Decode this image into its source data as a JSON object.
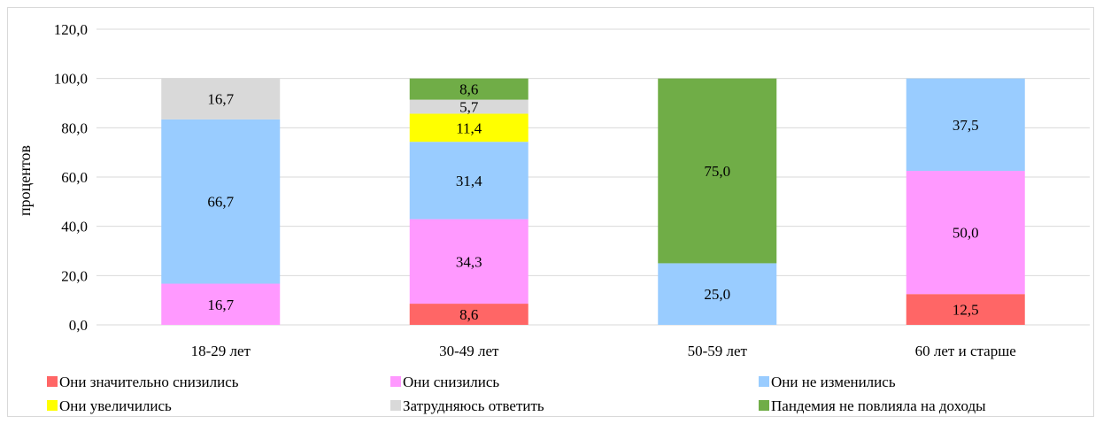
{
  "chart_data": {
    "type": "bar",
    "stacked": true,
    "title": "",
    "xlabel": "",
    "ylabel": "процентов",
    "ylim": [
      0,
      120
    ],
    "yticks": [
      "0,0",
      "20,0",
      "40,0",
      "60,0",
      "80,0",
      "100,0",
      "120,0"
    ],
    "grid": true,
    "legend_position": "bottom",
    "categories": [
      "18-29 лет",
      "30-49 лет",
      "50-59 лет",
      "60 лет и старше"
    ],
    "series": [
      {
        "name": "Они значительно снизились",
        "color": "#ff6666",
        "values": [
          0,
          8.6,
          0,
          12.5
        ],
        "labels": [
          "",
          "8,6",
          "",
          "12,5"
        ]
      },
      {
        "name": "Они снизились",
        "color": "#ff99ff",
        "values": [
          16.7,
          34.3,
          0,
          50.0
        ],
        "labels": [
          "16,7",
          "34,3",
          "",
          "50,0"
        ]
      },
      {
        "name": "Они не изменились",
        "color": "#99ccff",
        "values": [
          66.7,
          31.4,
          25.0,
          37.5
        ],
        "labels": [
          "66,7",
          "31,4",
          "25,0",
          "37,5"
        ]
      },
      {
        "name": "Они увеличились",
        "color": "#ffff00",
        "values": [
          0,
          11.4,
          0,
          0
        ],
        "labels": [
          "",
          "11,4",
          "",
          ""
        ]
      },
      {
        "name": "Затрудняюсь ответить",
        "color": "#d9d9d9",
        "values": [
          16.7,
          5.7,
          0,
          0
        ],
        "labels": [
          "16,7",
          "5,7",
          "",
          ""
        ]
      },
      {
        "name": "Пандемия не повлияла на доходы",
        "color": "#70ad47",
        "values": [
          0,
          8.6,
          75.0,
          0
        ],
        "labels": [
          "",
          "8,6",
          "75,0",
          ""
        ]
      }
    ]
  }
}
